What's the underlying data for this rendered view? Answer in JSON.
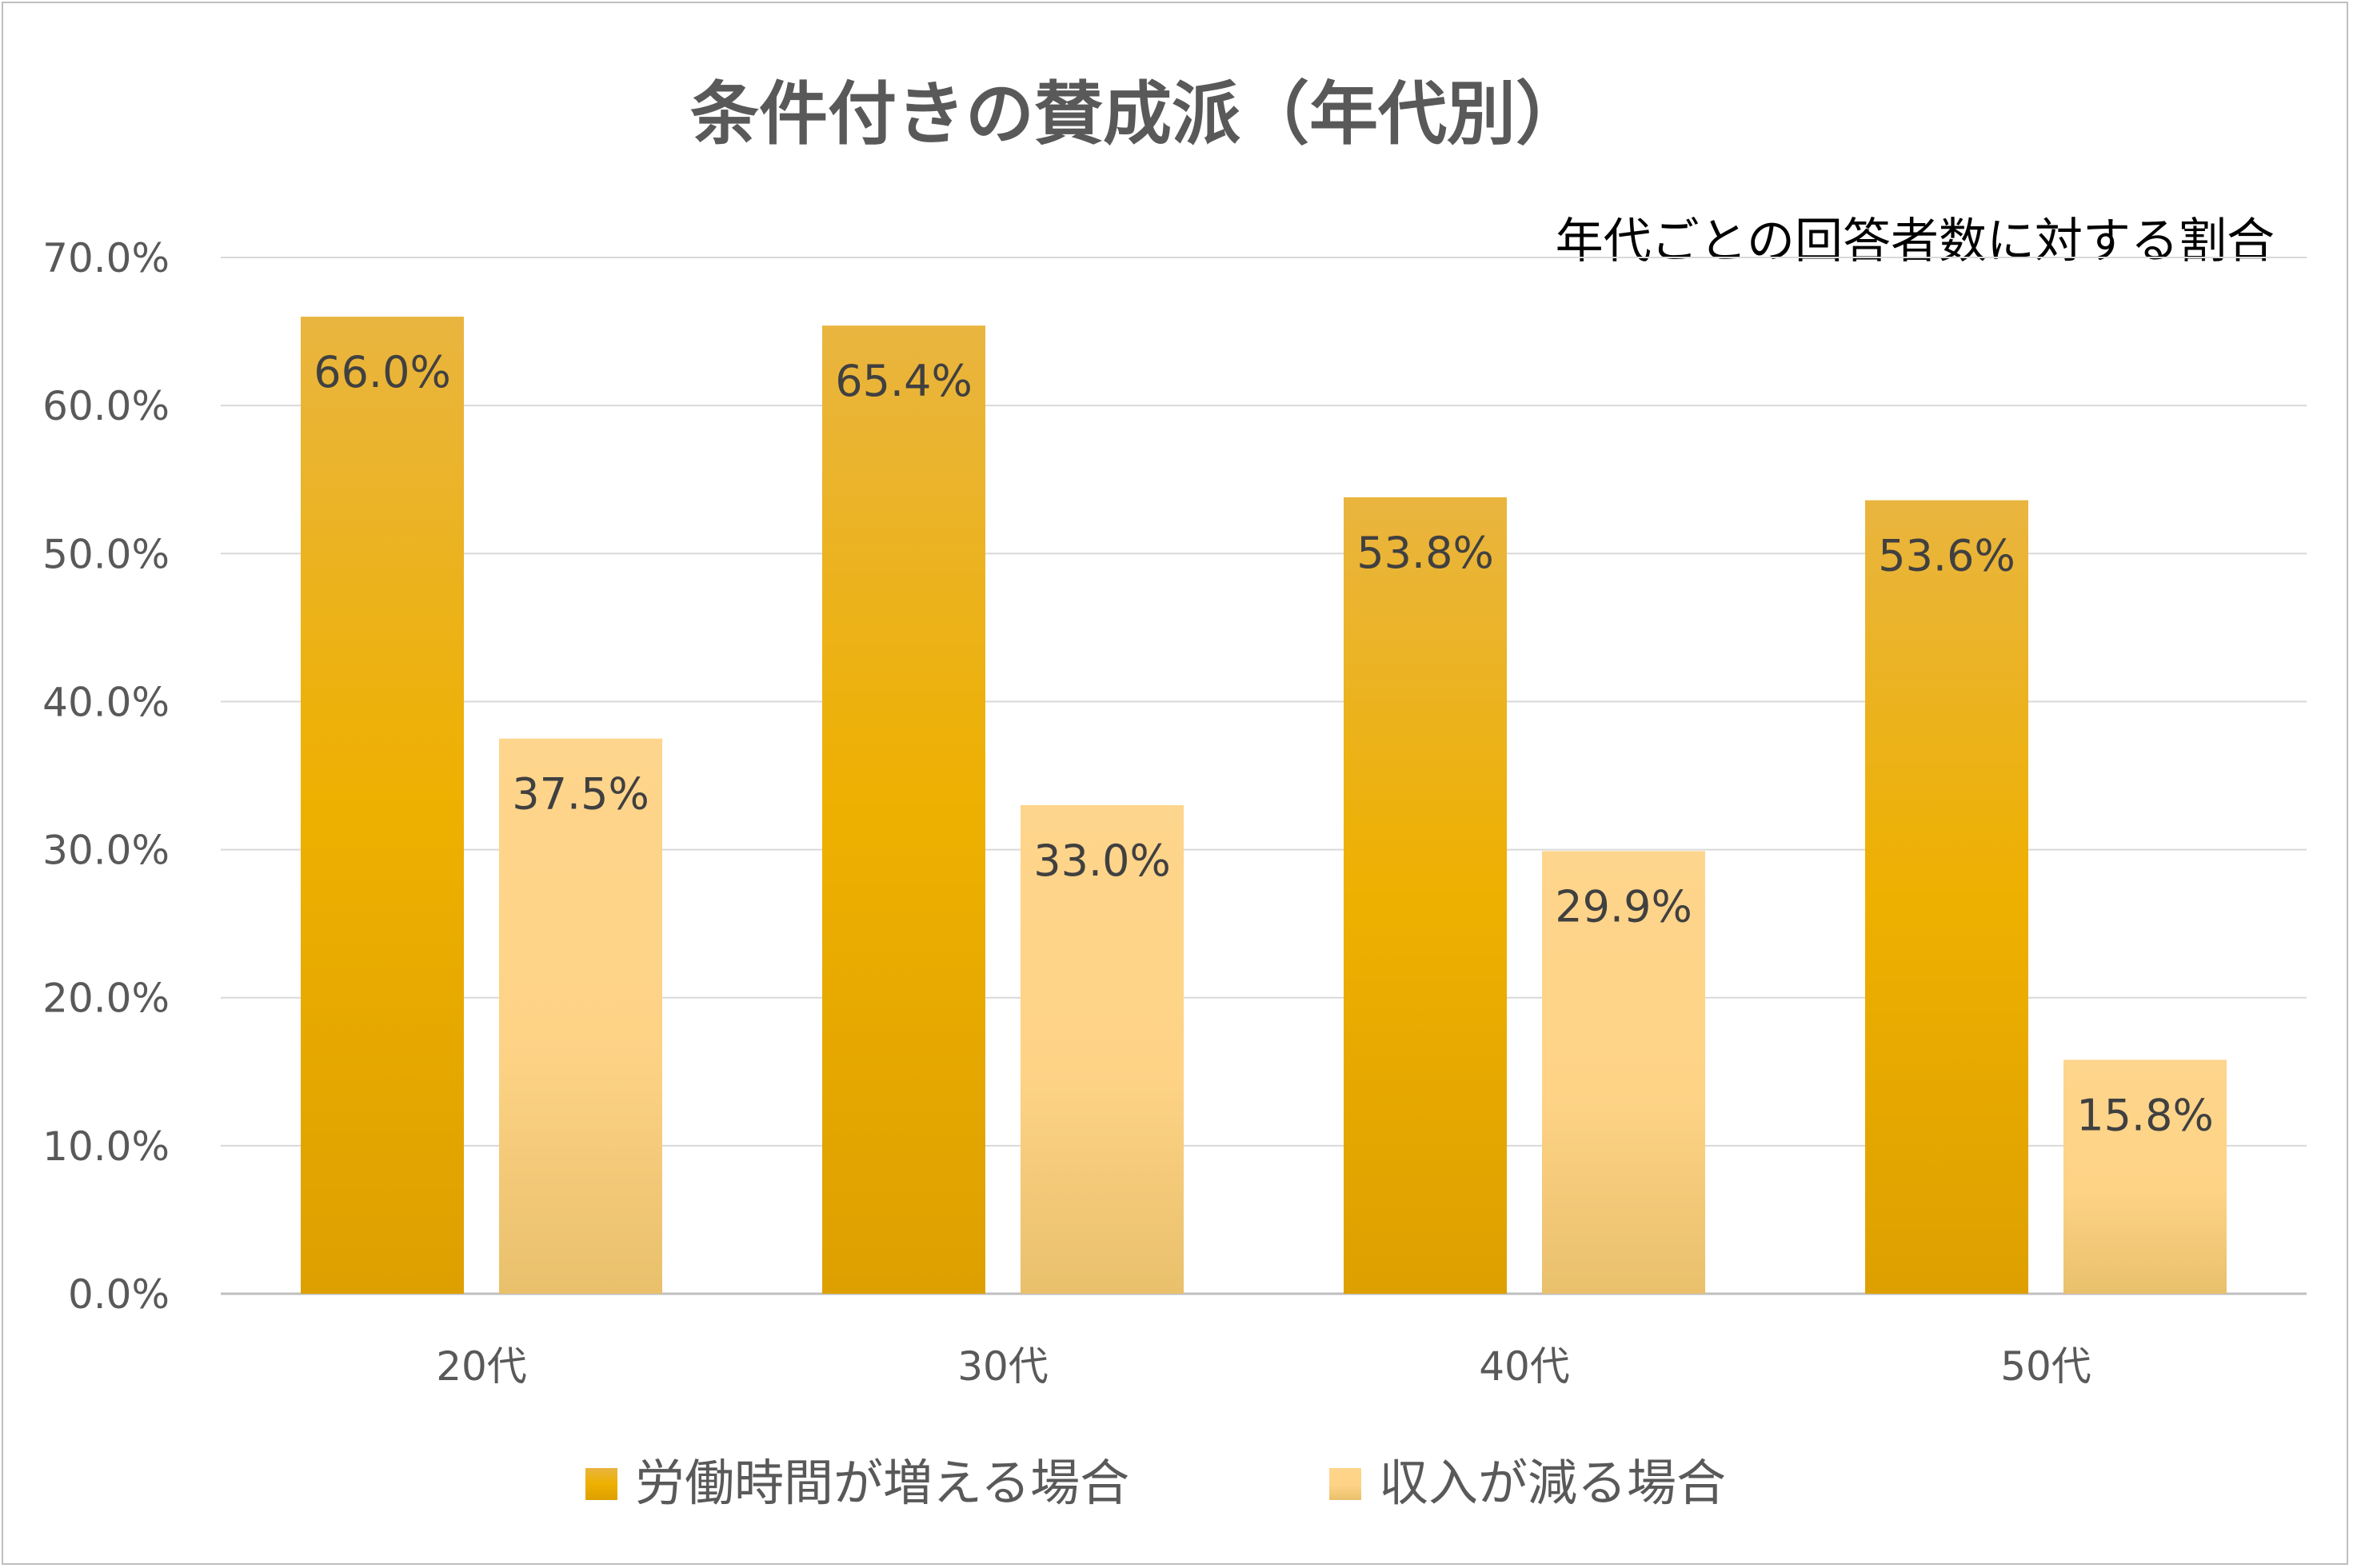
{
  "chart_data": {
    "type": "bar",
    "title": "条件付きの賛成派（年代別）",
    "subtitle": "年代ごとの回答者数に対する割合",
    "categories": [
      "20代",
      "30代",
      "40代",
      "50代"
    ],
    "series": [
      {
        "name": "労働時間が増える場合",
        "values": [
          66.0,
          65.4,
          53.8,
          53.6
        ],
        "labels": [
          "66.0%",
          "65.4%",
          "53.8%",
          "53.6%"
        ],
        "color": "#EDB110"
      },
      {
        "name": "収入が減る場合",
        "values": [
          37.5,
          33.0,
          29.9,
          15.8
        ],
        "labels": [
          "37.5%",
          "33.0%",
          "29.9%",
          "15.8%"
        ],
        "color": "#FED386"
      }
    ],
    "y_ticks": [
      "0.0%",
      "10.0%",
      "20.0%",
      "30.0%",
      "40.0%",
      "50.0%",
      "60.0%",
      "70.0%"
    ],
    "ylim": [
      0,
      70
    ],
    "grid": true,
    "legend_position": "bottom"
  }
}
